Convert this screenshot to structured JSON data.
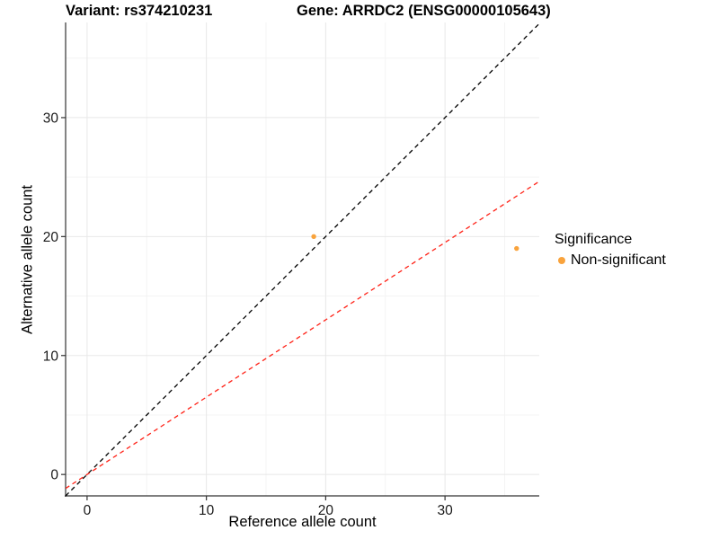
{
  "header": {
    "title_left": "Variant: rs374210231",
    "title_right": "Gene: ARRDC2 (ENSG00000105643)"
  },
  "legend": {
    "title": "Significance",
    "items": [
      {
        "label": "Non-significant",
        "color": "#F9A33C"
      }
    ]
  },
  "chart_data": {
    "type": "scatter",
    "title_left": "Variant: rs374210231",
    "title_right": "Gene: ARRDC2 (ENSG00000105643)",
    "xlabel": "Reference allele count",
    "ylabel": "Alternative allele count",
    "xlim": [
      -1.8,
      37.9
    ],
    "ylim": [
      -1.8,
      38
    ],
    "x_major_ticks": [
      0,
      10,
      20,
      30
    ],
    "x_minor_ticks": [
      5,
      15,
      25,
      35
    ],
    "y_major_ticks": [
      0,
      10,
      20,
      30
    ],
    "y_minor_ticks": [
      5,
      15,
      25,
      35
    ],
    "grid": "on",
    "legend_position": "right",
    "series": [
      {
        "name": "Non-significant",
        "color": "#F9A33C",
        "points": [
          {
            "x": 19,
            "y": 20
          },
          {
            "x": 36,
            "y": 19
          }
        ]
      }
    ],
    "reference_lines": [
      {
        "name": "identity-line",
        "slope": 1,
        "intercept": 0,
        "color": "#000000",
        "style": "dashed"
      },
      {
        "name": "expected-ratio-line",
        "slope": 0.65,
        "intercept": 0,
        "color": "#FF2015",
        "style": "dashed"
      }
    ],
    "colors": {
      "grid_major": "#E8E8E8",
      "grid_minor": "#F4F4F4",
      "axis_line": "#333333",
      "tick_text": "#1A1A1A"
    }
  }
}
